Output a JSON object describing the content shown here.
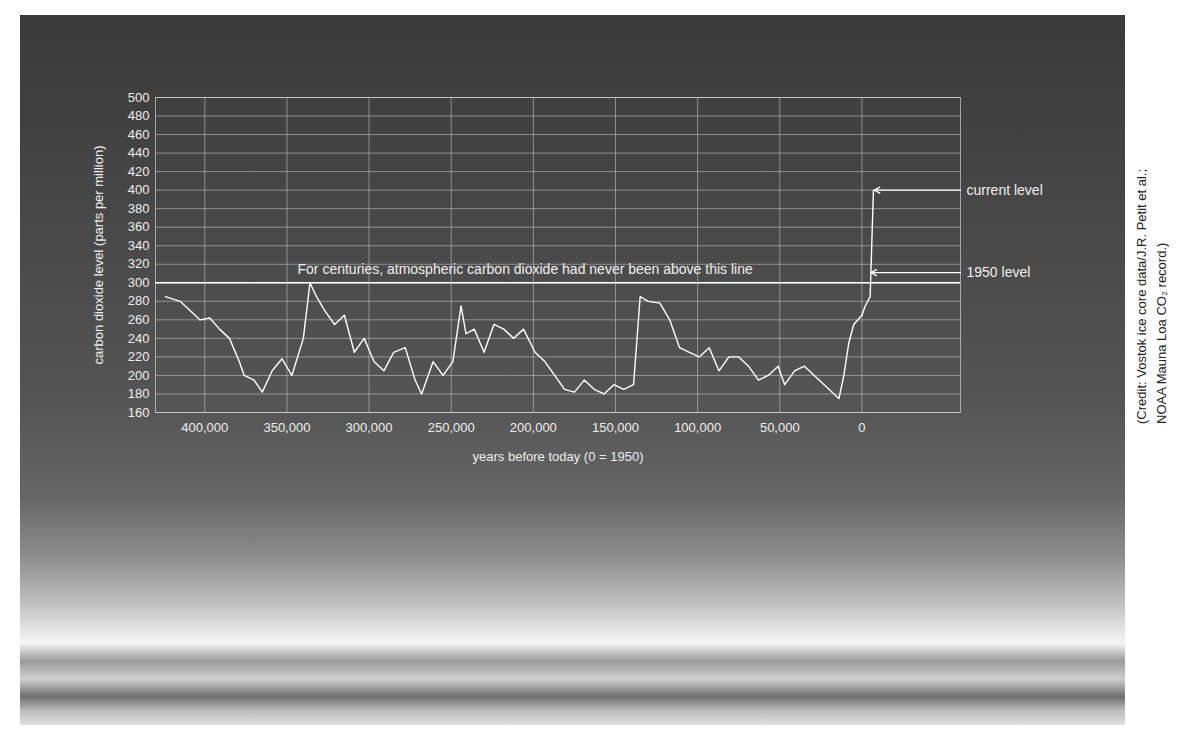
{
  "chart_data": {
    "type": "line",
    "xlabel": "years before today (0 = 1950)",
    "ylabel": "carbon dioxide level (parts per million)",
    "x": [
      424000,
      415000,
      409000,
      403000,
      397000,
      391000,
      385000,
      379000,
      376000,
      370000,
      365000,
      359000,
      353000,
      347000,
      340000,
      336000,
      332000,
      327000,
      321000,
      315000,
      309000,
      303000,
      297000,
      291000,
      285000,
      278000,
      272000,
      268000,
      261000,
      255000,
      249000,
      244000,
      241000,
      236000,
      230000,
      224000,
      218000,
      212000,
      206000,
      199000,
      193000,
      187000,
      181000,
      175000,
      169000,
      163000,
      157000,
      151000,
      145000,
      139000,
      135000,
      130000,
      123000,
      117000,
      111000,
      105000,
      99000,
      93000,
      87000,
      81000,
      75000,
      69000,
      63000,
      57000,
      51000,
      47000,
      41000,
      35000,
      29000,
      23000,
      17000,
      14000,
      11000,
      8000,
      5000,
      0,
      -2000,
      -5000,
      -7000
    ],
    "values": [
      285,
      280,
      270,
      260,
      262,
      250,
      240,
      215,
      200,
      195,
      182,
      205,
      218,
      200,
      240,
      300,
      285,
      270,
      255,
      265,
      225,
      240,
      215,
      205,
      225,
      230,
      195,
      180,
      215,
      200,
      215,
      275,
      245,
      250,
      225,
      255,
      250,
      240,
      250,
      225,
      215,
      200,
      185,
      182,
      195,
      185,
      180,
      190,
      185,
      190,
      285,
      280,
      278,
      260,
      230,
      225,
      220,
      230,
      205,
      220,
      220,
      210,
      195,
      200,
      210,
      190,
      205,
      210,
      200,
      190,
      180,
      175,
      200,
      235,
      255,
      265,
      275,
      285,
      400
    ],
    "color": "#ffffff",
    "xlim": [
      430000,
      -60000
    ],
    "xticks": [
      {
        "value": 400000,
        "label": "400,000"
      },
      {
        "value": 350000,
        "label": "350,000"
      },
      {
        "value": 300000,
        "label": "300,000"
      },
      {
        "value": 250000,
        "label": "250,000"
      },
      {
        "value": 200000,
        "label": "200,000"
      },
      {
        "value": 150000,
        "label": "150,000"
      },
      {
        "value": 100000,
        "label": "100,000"
      },
      {
        "value": 50000,
        "label": "50,000"
      },
      0
    ],
    "ylim": [
      160,
      500
    ],
    "yticks": [
      160,
      180,
      200,
      220,
      240,
      260,
      280,
      300,
      320,
      340,
      360,
      380,
      400,
      420,
      440,
      460,
      480,
      500
    ],
    "grid": true,
    "reference_line": {
      "y": 300,
      "x": 205000,
      "text": "For centuries, atmospheric carbon dioxide had never been above this line"
    },
    "annotations": [
      {
        "text": "current level",
        "x": -7000,
        "y": 400
      },
      {
        "text": "1950 level",
        "x": -5000,
        "y": 311
      }
    ],
    "credit": [
      "(Credit: Vostok ice core data/J.R. Petit et al.;",
      "NOAA Mauna Loa CO₂ record.)"
    ]
  }
}
